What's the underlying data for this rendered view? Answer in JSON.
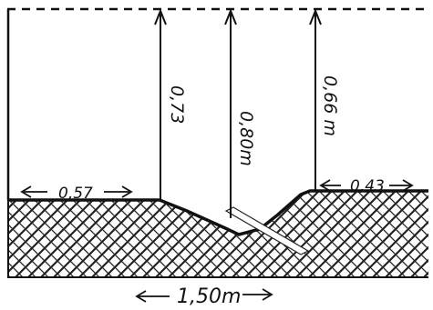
{
  "diagram": {
    "labels": {
      "left_ground": "0,57",
      "right_ground": "0,43",
      "height_left": "0,73",
      "height_center": "0,80m",
      "height_right": "0,66 m",
      "total_width": "1,50m"
    }
  }
}
